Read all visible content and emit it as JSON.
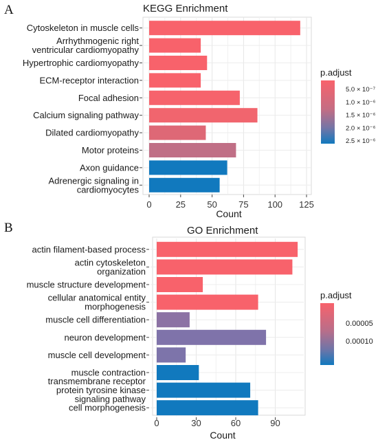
{
  "chart_data": [
    {
      "type": "bar",
      "orientation": "horizontal",
      "panel_letter": "A",
      "title": "KEGG Enrichment",
      "xlabel": "Count",
      "ylabel": "",
      "xlim": [
        0,
        125
      ],
      "xticks": [
        "0",
        "25",
        "50",
        "75",
        "100",
        "125"
      ],
      "grid": true,
      "categories": [
        {
          "label": [
            "Cytoskeleton in muscle cells"
          ],
          "count": 120,
          "color": "#F8626B"
        },
        {
          "label": [
            "Arrhythmogenic right",
            "ventricular cardiomyopathy"
          ],
          "count": 41,
          "color": "#F8626B"
        },
        {
          "label": [
            "Hypertrophic cardiomyopathy"
          ],
          "count": 46,
          "color": "#F8626B"
        },
        {
          "label": [
            "ECM-receptor interaction"
          ],
          "count": 41,
          "color": "#F8626B"
        },
        {
          "label": [
            "Focal adhesion"
          ],
          "count": 72,
          "color": "#F6636C"
        },
        {
          "label": [
            "Calcium signaling pathway"
          ],
          "count": 86,
          "color": "#F1656E"
        },
        {
          "label": [
            "Dilated cardiomyopathy"
          ],
          "count": 45,
          "color": "#DE6876"
        },
        {
          "label": [
            "Motor proteins"
          ],
          "count": 69,
          "color": "#C06F86"
        },
        {
          "label": [
            "Axon guidance"
          ],
          "count": 62,
          "color": "#1179BE"
        },
        {
          "label": [
            "Adrenergic signaling in",
            "cardiomyocytes"
          ],
          "count": 56,
          "color": "#1179BE"
        }
      ],
      "legend": {
        "title": "p.adjust",
        "position": "right",
        "colors": [
          "#F8626B",
          "#1179BE"
        ],
        "ticks": [
          "5.0 × 10⁻⁷",
          "1.0 × 10⁻⁶",
          "1.5 × 10⁻⁶",
          "2.0 × 10⁻⁶",
          "2.5 × 10⁻⁶"
        ]
      }
    },
    {
      "type": "bar",
      "orientation": "horizontal",
      "panel_letter": "B",
      "title": "GO Enrichment",
      "xlabel": "Count",
      "ylabel": "",
      "xlim": [
        0,
        108
      ],
      "xticks": [
        "0",
        "30",
        "60",
        "90"
      ],
      "grid": true,
      "categories": [
        {
          "label": [
            "actin filament-based process"
          ],
          "count": 107,
          "color": "#F8626B"
        },
        {
          "label": [
            "actin cytoskeleton",
            "organization"
          ],
          "count": 103,
          "color": "#F8626B"
        },
        {
          "label": [
            "muscle structure development"
          ],
          "count": 35,
          "color": "#F8626B"
        },
        {
          "label": [
            "cellular anatomical entity",
            "morphogenesis"
          ],
          "count": 77,
          "color": "#F8626B"
        },
        {
          "label": [
            "muscle cell differentiation"
          ],
          "count": 25,
          "color": "#8C72A4"
        },
        {
          "label": [
            "neuron development"
          ],
          "count": 83,
          "color": "#7F73AA"
        },
        {
          "label": [
            "muscle cell development"
          ],
          "count": 22,
          "color": "#7D74AA"
        },
        {
          "label": [
            "muscle contraction"
          ],
          "count": 32,
          "color": "#1179BE"
        },
        {
          "label": [
            "transmembrane receptor",
            "protein tyrosine kinase",
            "signaling pathway"
          ],
          "count": 71,
          "color": "#1179BE"
        },
        {
          "label": [
            "cell morphogenesis"
          ],
          "count": 77,
          "color": "#1179BE"
        }
      ],
      "legend": {
        "title": "p.adjust",
        "position": "right",
        "colors": [
          "#F8626B",
          "#1179BE"
        ],
        "ticks": [
          "0.00005",
          "0.00010"
        ]
      }
    }
  ]
}
